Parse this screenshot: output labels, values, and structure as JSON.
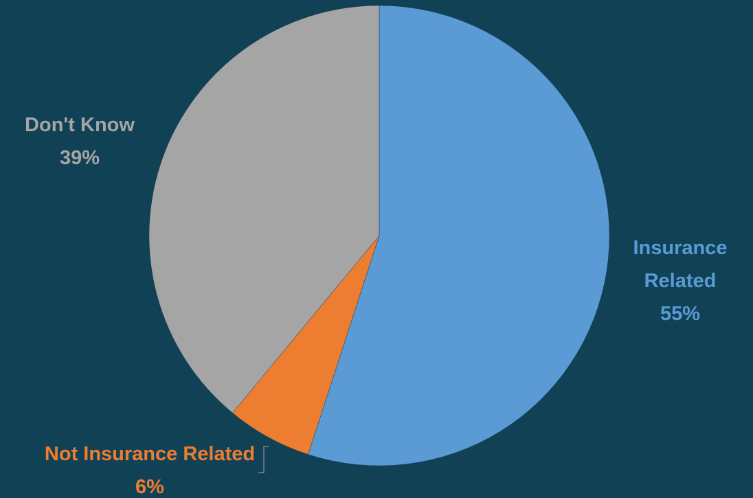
{
  "chart_data": {
    "type": "pie",
    "title": "",
    "start_angle_deg": 0,
    "direction": "clockwise",
    "slices": [
      {
        "label": "Insurance Related",
        "label_lines": [
          "Insurance",
          "Related"
        ],
        "value": 55,
        "value_label": "55%",
        "color": "#5b9bd5",
        "label_color": "#5b9bd5"
      },
      {
        "label": "Not Insurance Related",
        "label_lines": [
          "Not Insurance Related"
        ],
        "value": 6,
        "value_label": "6%",
        "color": "#ed7d31",
        "label_color": "#ed7d31"
      },
      {
        "label": "Don't Know",
        "label_lines": [
          "Don't Know"
        ],
        "value": 39,
        "value_label": "39%",
        "color": "#a5a5a5",
        "label_color": "#a5a5a5"
      }
    ],
    "legend": "none",
    "data_labels": "outside",
    "background_color": "#114155"
  }
}
